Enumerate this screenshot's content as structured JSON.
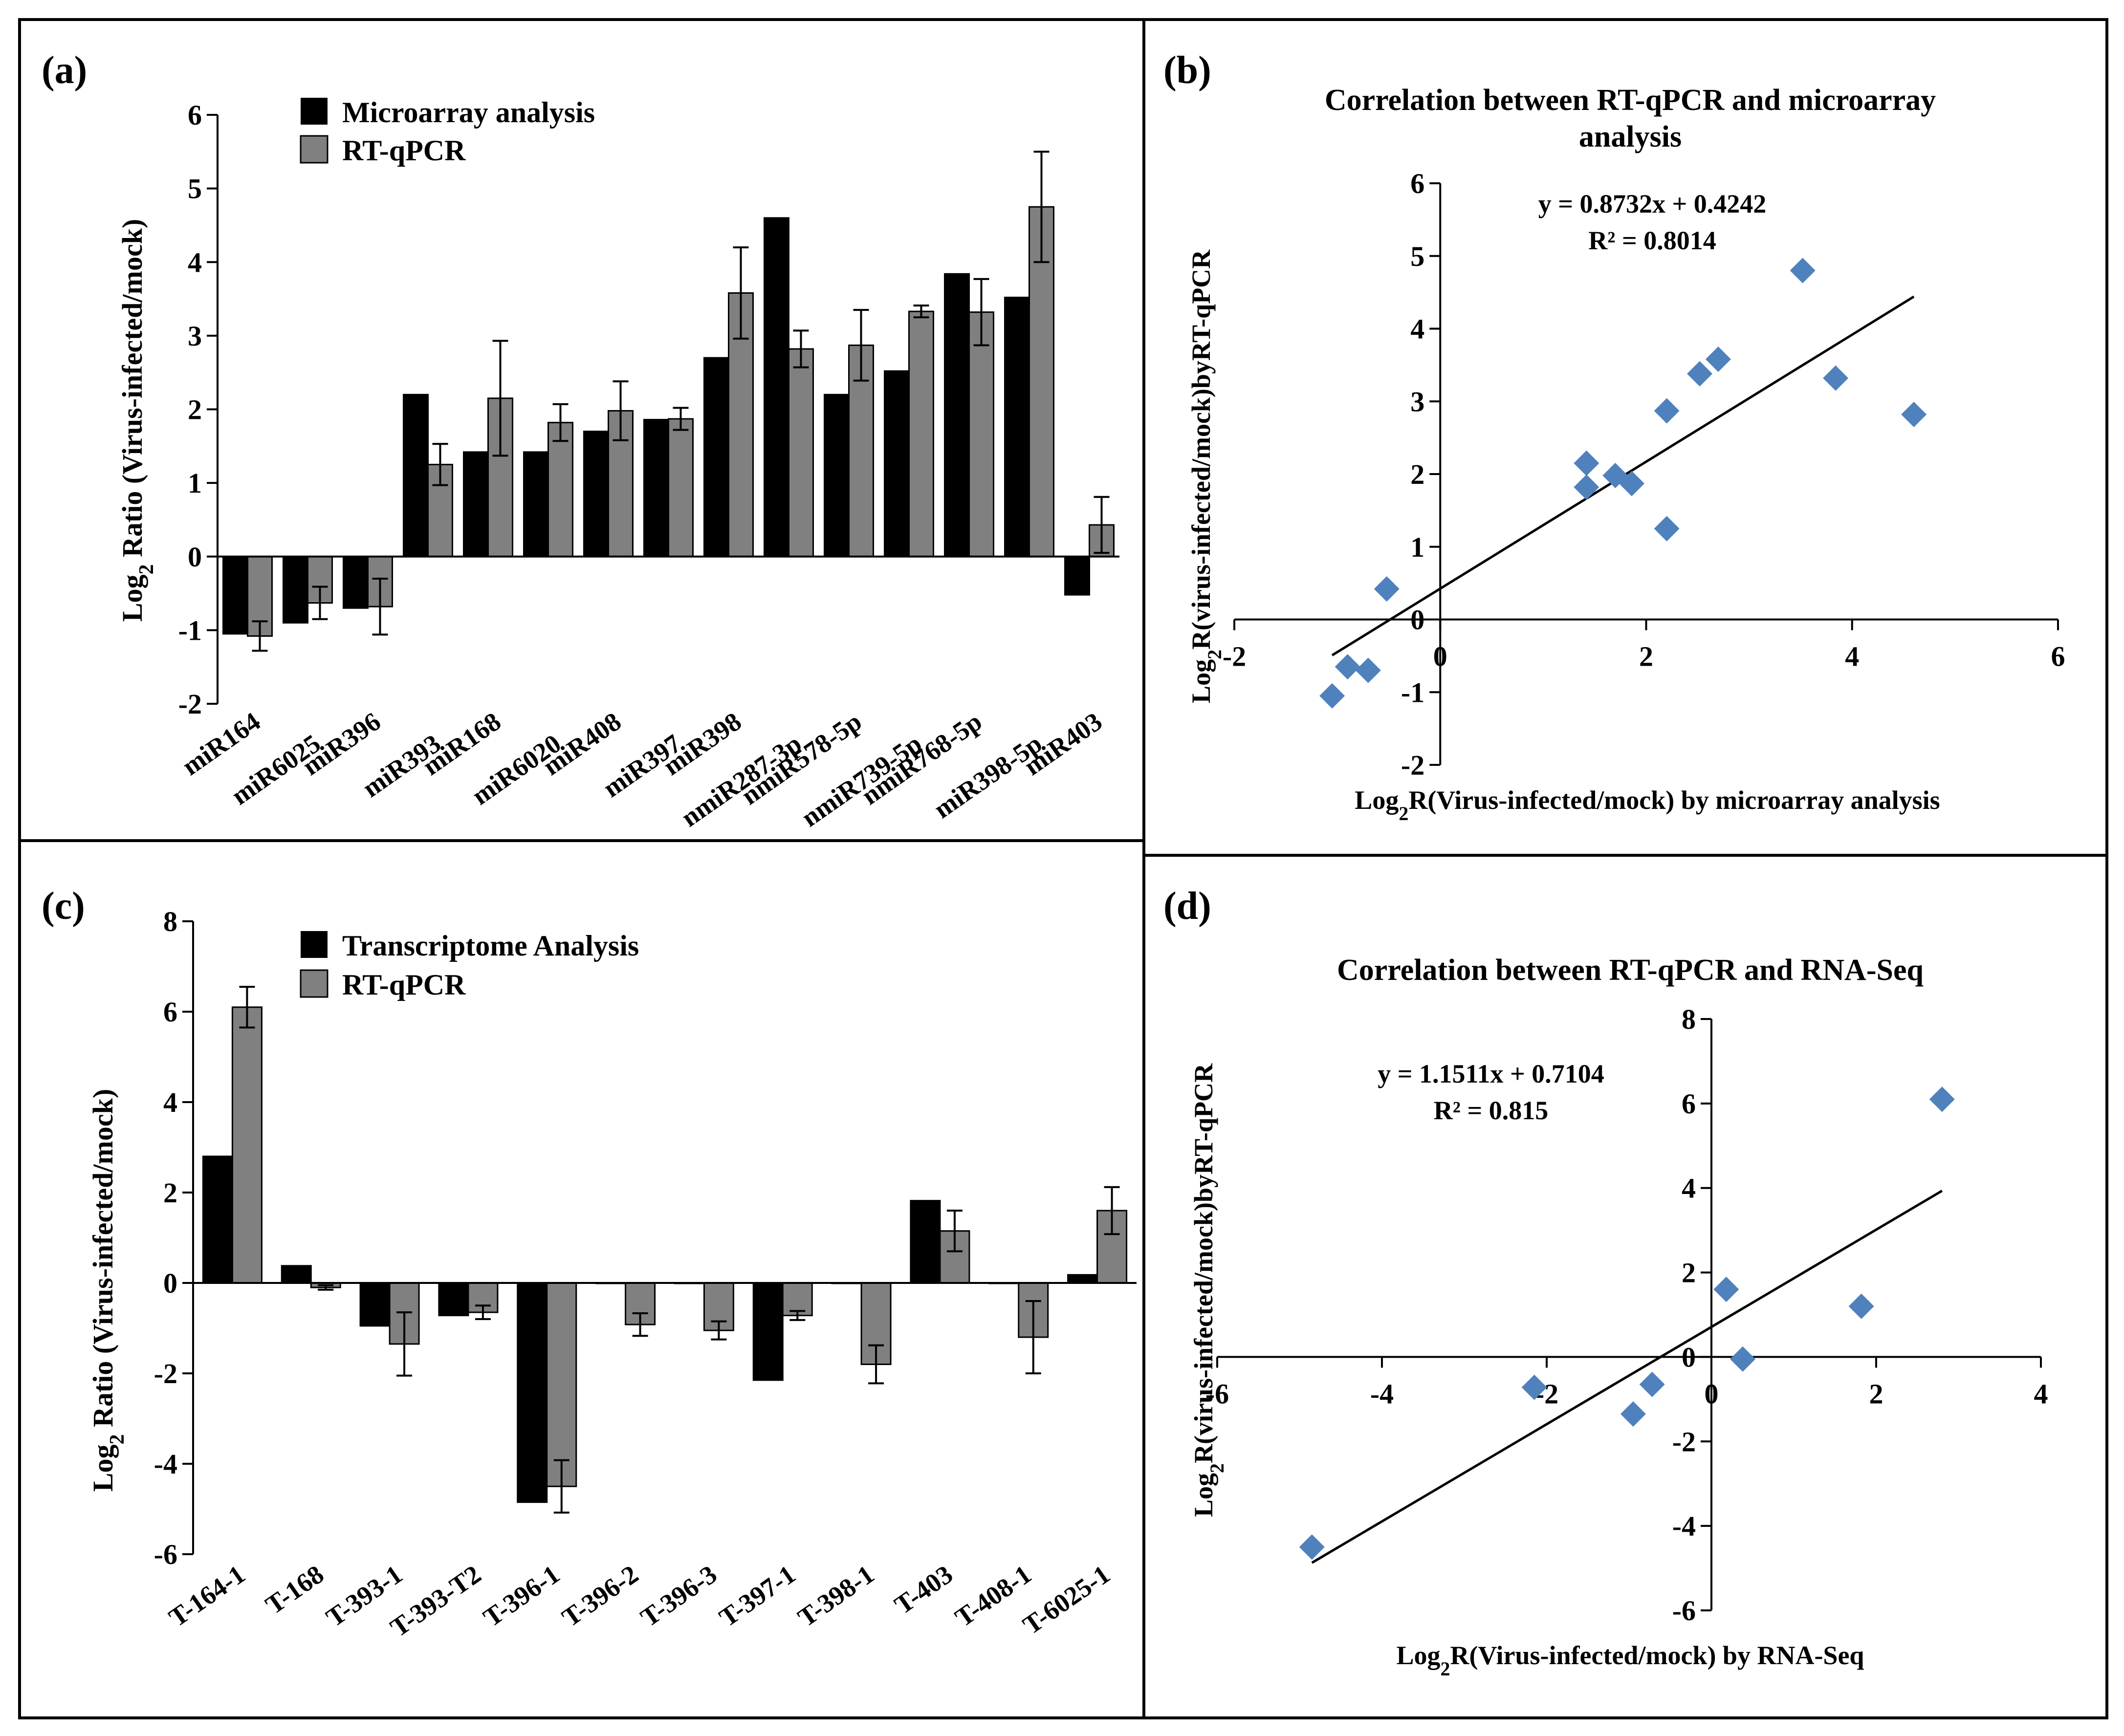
{
  "chart_data": [
    {
      "panel": "(a)",
      "type": "bar",
      "ylabel_prefix": "Log",
      "ylabel_sub": "2",
      "ylabel_rest": " Ratio (Virus-infected/mock)",
      "ylim": [
        -2,
        6
      ],
      "yticks": [
        -2,
        -1,
        0,
        1,
        2,
        3,
        4,
        5,
        6
      ],
      "categories": [
        "miR164",
        "miR6025",
        "miR396",
        "miR393",
        "miR168",
        "miR6020",
        "miR408",
        "miR397",
        "miR398",
        "nmiR287-3p",
        "nmiR578-5p",
        "nmiR739-5p",
        "nmiR768-5p",
        "miR398-5p",
        "miR403"
      ],
      "series": [
        {
          "name": "Microarray analysis",
          "color": "#000000",
          "values": [
            -1.05,
            -0.9,
            -0.7,
            2.2,
            1.42,
            1.42,
            1.7,
            1.86,
            2.7,
            4.6,
            2.2,
            2.52,
            3.84,
            3.52,
            -0.52
          ]
        },
        {
          "name": "RT-qPCR",
          "color": "#808080",
          "values": [
            -1.08,
            -0.63,
            -0.68,
            1.25,
            2.15,
            1.82,
            1.98,
            1.87,
            3.58,
            2.82,
            2.87,
            3.33,
            3.32,
            4.75,
            0.43
          ],
          "errors": [
            0.2,
            0.22,
            0.38,
            0.28,
            0.78,
            0.25,
            0.4,
            0.15,
            0.62,
            0.25,
            0.48,
            0.08,
            0.45,
            0.75,
            0.38
          ]
        }
      ]
    },
    {
      "panel": "(b)",
      "type": "scatter",
      "title": "Correlation between RT-qPCR and microarray analysis",
      "title_line1": "Correlation between RT-qPCR and microarray",
      "title_line2": "analysis",
      "xlabel_prefix": "Log",
      "xlabel_sub": "2",
      "xlabel_rest": "R(Virus-infected/mock) by microarray analysis",
      "ylabel_prefix": "Log",
      "ylabel_sub": "2",
      "ylabel_rest": "R(virus-infected/mock)byRT-qPCR",
      "xlim": [
        -2,
        6
      ],
      "ylim": [
        -2,
        6
      ],
      "xticks": [
        -2,
        0,
        2,
        4,
        6
      ],
      "yticks": [
        -2,
        -1,
        0,
        1,
        2,
        3,
        4,
        5,
        6
      ],
      "equation": "y = 0.8732x + 0.4242",
      "r2": "R² = 0.8014",
      "slope": 0.8732,
      "intercept": 0.4242,
      "trend_x": [
        -1.05,
        4.6
      ],
      "marker_color": "#4F81BD",
      "points": [
        [
          -1.05,
          -1.05
        ],
        [
          -0.9,
          -0.65
        ],
        [
          -0.7,
          -0.7
        ],
        [
          -0.52,
          0.42
        ],
        [
          1.42,
          2.15
        ],
        [
          1.42,
          1.82
        ],
        [
          1.7,
          1.98
        ],
        [
          1.86,
          1.87
        ],
        [
          2.2,
          1.25
        ],
        [
          2.2,
          2.87
        ],
        [
          2.52,
          3.38
        ],
        [
          2.7,
          3.58
        ],
        [
          3.52,
          4.8
        ],
        [
          3.84,
          3.32
        ],
        [
          4.6,
          2.82
        ]
      ]
    },
    {
      "panel": "(c)",
      "type": "bar",
      "ylabel_prefix": "Log",
      "ylabel_sub": "2",
      "ylabel_rest": " Ratio (Virus-infected/mock)",
      "ylim": [
        -6,
        8
      ],
      "yticks": [
        -6,
        -4,
        -2,
        0,
        2,
        4,
        6,
        8
      ],
      "categories": [
        "T-164-1",
        "T-168",
        "T-393-1",
        "T-393-T2",
        "T-396-1",
        "T-396-2",
        "T-396-3",
        "T-397-1",
        "T-398-1",
        "T-403",
        "T-408-1",
        "T-6025-1"
      ],
      "series": [
        {
          "name": "Transcriptome Analysis",
          "color": "#000000",
          "values": [
            2.8,
            0.38,
            -0.95,
            -0.72,
            -4.85,
            0,
            0,
            -2.15,
            0,
            1.82,
            0,
            0.18
          ]
        },
        {
          "name": "RT-qPCR",
          "color": "#808080",
          "values": [
            6.1,
            -0.1,
            -1.35,
            -0.65,
            -4.5,
            -0.92,
            -1.05,
            -0.72,
            -1.8,
            1.15,
            -1.2,
            1.6
          ],
          "errors": [
            0.45,
            0.05,
            0.7,
            0.15,
            0.58,
            0.25,
            0.2,
            0.1,
            0.42,
            0.45,
            0.8,
            0.52
          ]
        }
      ]
    },
    {
      "panel": "(d)",
      "type": "scatter",
      "title": "Correlation between RT-qPCR and RNA-Seq",
      "xlabel_prefix": "Log",
      "xlabel_sub": "2",
      "xlabel_rest": "R(Virus-infected/mock) by RNA-Seq",
      "ylabel_prefix": "Log",
      "ylabel_sub": "2",
      "ylabel_rest": "R(virus-infected/mock)byRT-qPCR",
      "xlim": [
        -6,
        4
      ],
      "ylim": [
        -6,
        8
      ],
      "xticks": [
        -6,
        -4,
        -2,
        0,
        2,
        4
      ],
      "yticks": [
        -6,
        -4,
        -2,
        0,
        2,
        4,
        6,
        8
      ],
      "equation": "y = 1.1511x + 0.7104",
      "r2": "R² = 0.815",
      "slope": 1.1511,
      "intercept": 0.7104,
      "trend_x": [
        -4.85,
        2.8
      ],
      "marker_color": "#4F81BD",
      "points": [
        [
          -4.85,
          -4.5
        ],
        [
          -2.15,
          -0.72
        ],
        [
          -0.95,
          -1.35
        ],
        [
          -0.72,
          -0.65
        ],
        [
          0.18,
          1.6
        ],
        [
          0.38,
          -0.05
        ],
        [
          1.82,
          1.2
        ],
        [
          2.8,
          6.1
        ]
      ]
    }
  ]
}
